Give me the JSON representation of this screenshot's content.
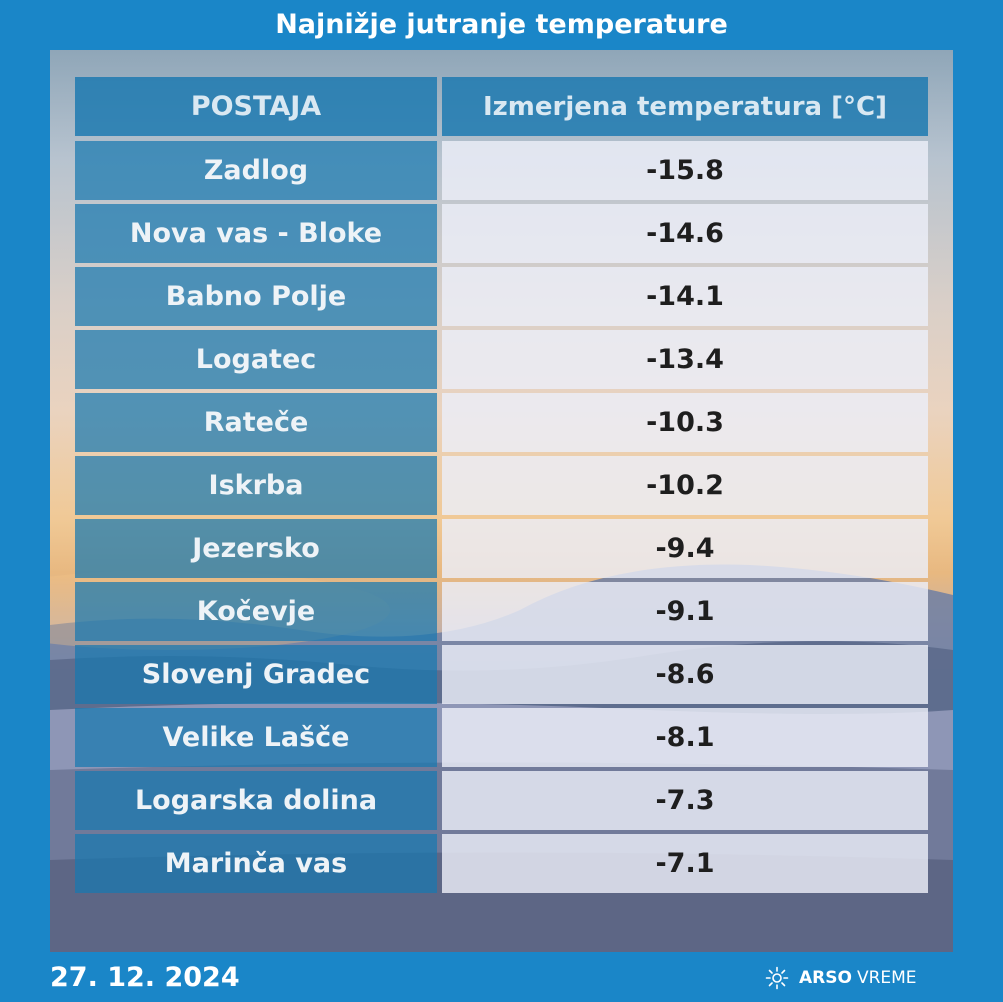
{
  "title": "Najnižje jutranje temperature",
  "table": {
    "header_station": "POSTAJA",
    "header_value": "Izmerjena temperatura [°C]"
  },
  "chart_data": {
    "type": "table",
    "title": "Najnižje jutranje temperature",
    "columns": [
      "POSTAJA",
      "Izmerjena temperatura [°C]"
    ],
    "rows": [
      {
        "station": "Zadlog",
        "value": "-15.8"
      },
      {
        "station": "Nova vas - Bloke",
        "value": "-14.6"
      },
      {
        "station": "Babno Polje",
        "value": "-14.1"
      },
      {
        "station": "Logatec",
        "value": "-13.4"
      },
      {
        "station": "Rateče",
        "value": "-10.3"
      },
      {
        "station": "Iskrba",
        "value": "-10.2"
      },
      {
        "station": "Jezersko",
        "value": "-9.4"
      },
      {
        "station": "Kočevje",
        "value": "-9.1"
      },
      {
        "station": "Slovenj Gradec",
        "value": "-8.6"
      },
      {
        "station": "Velike Lašče",
        "value": "-8.1"
      },
      {
        "station": "Logarska dolina",
        "value": "-7.3"
      },
      {
        "station": "Marinča vas",
        "value": "-7.1"
      }
    ]
  },
  "footer": {
    "date": "27. 12. 2024",
    "brand_bold": "ARSO",
    "brand_light": "VREME",
    "brand_icon": "weather-sun-snow-icon"
  },
  "colors": {
    "frame": "#1a86c8",
    "station_cell": "#1878b0",
    "value_cell": "#eceef8"
  }
}
